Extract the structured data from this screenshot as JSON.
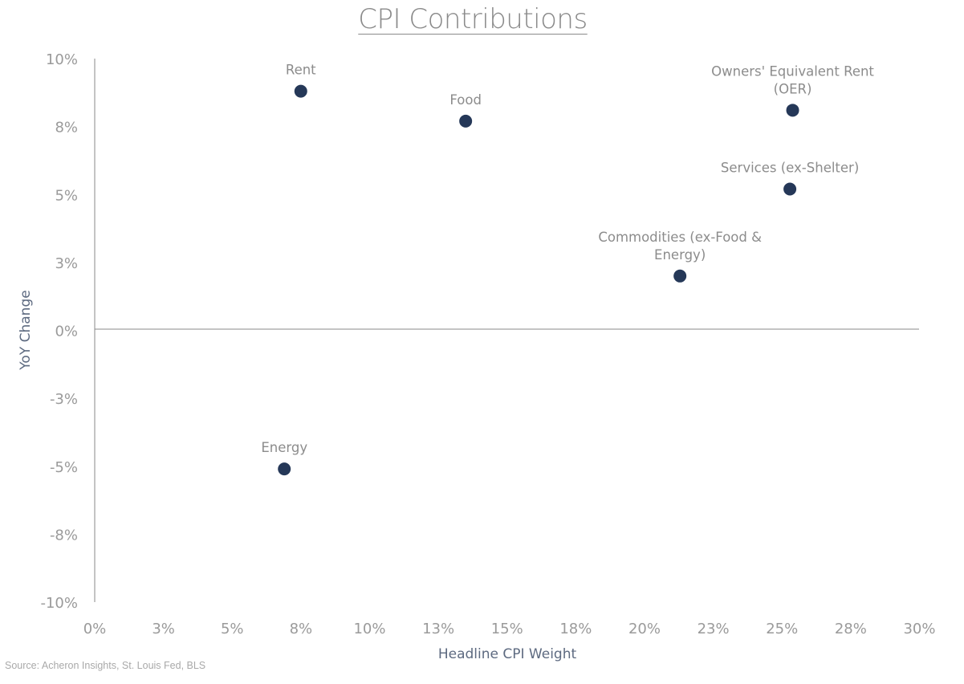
{
  "chart_data": {
    "type": "scatter",
    "title": "CPI Contributions",
    "xlabel": "Headline CPI Weight",
    "ylabel": "YoY Change",
    "xlim": [
      0,
      30
    ],
    "ylim": [
      -10,
      10
    ],
    "x_tick_labels": [
      "0%",
      "3%",
      "5%",
      "8%",
      "10%",
      "13%",
      "15%",
      "18%",
      "20%",
      "23%",
      "25%",
      "28%",
      "30%"
    ],
    "y_tick_labels": [
      "10%",
      "8%",
      "5%",
      "3%",
      "0%",
      "-3%",
      "-5%",
      "-8%",
      "-10%"
    ],
    "grid": false,
    "marker_color": "#253858",
    "points": [
      {
        "label": "Rent",
        "x": 7.5,
        "y": 8.8
      },
      {
        "label": "Food",
        "x": 13.5,
        "y": 7.7
      },
      {
        "label": "Owners' Equivalent Rent (OER)",
        "x": 25.4,
        "y": 8.1
      },
      {
        "label": "Services (ex-Shelter)",
        "x": 25.3,
        "y": 5.2
      },
      {
        "label": "Commodities (ex-Food & Energy)",
        "x": 21.3,
        "y": 2.0
      },
      {
        "label": "Energy",
        "x": 6.9,
        "y": -5.1
      }
    ]
  },
  "source_text": "Source: Acheron Insights, St. Louis Fed, BLS"
}
